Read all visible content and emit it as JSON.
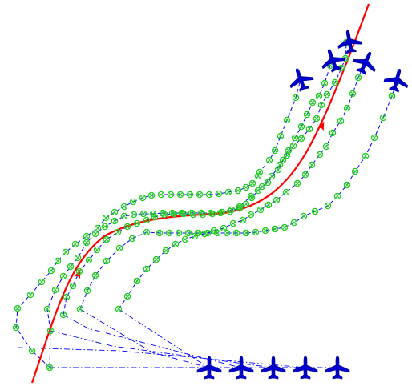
{
  "scene": {
    "background": "#ffffff",
    "colors": {
      "reference_path": "#ff0000",
      "trajectory": "#0000ff",
      "waypoint": "#22cc22",
      "aircraft": "#0000cc"
    },
    "aircraft_count_start": 5,
    "aircraft_count_end": 5,
    "icons": [
      "plane-icon",
      "waypoint-marker-icon",
      "direction-arrow-icon"
    ]
  }
}
